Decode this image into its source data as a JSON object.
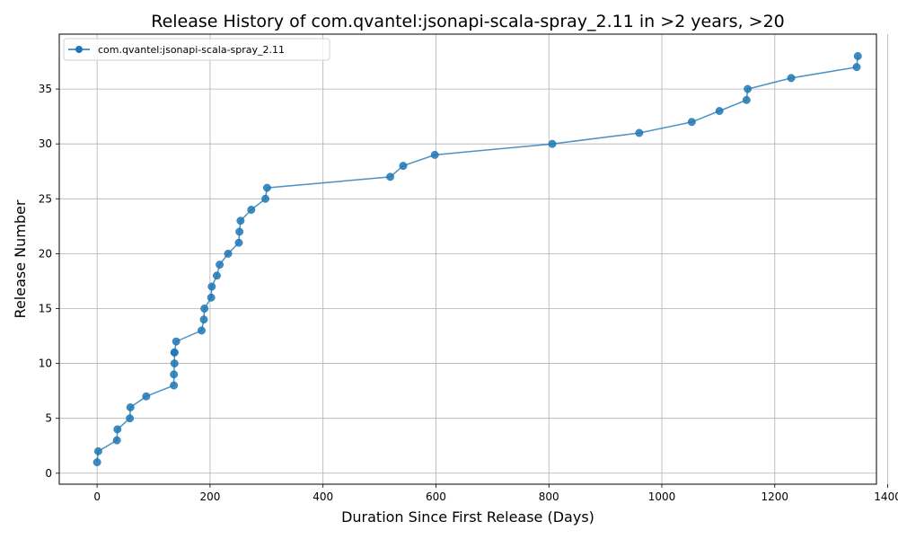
{
  "chart_data": {
    "type": "line",
    "title": "Release History of com.qvantel:jsonapi-scala-spray_2.11 in >2 years, >20",
    "xlabel": "Duration Since First Release (Days)",
    "ylabel": "Release Number",
    "xlim": [
      -67,
      1380
    ],
    "ylim": [
      -1,
      40
    ],
    "xticks": [
      0,
      200,
      400,
      600,
      800,
      1000,
      1200,
      1400
    ],
    "yticks": [
      0,
      5,
      10,
      15,
      20,
      25,
      30,
      35
    ],
    "grid": true,
    "legend_position": "top-left",
    "colors": {
      "series": "#1f77b4"
    },
    "series": [
      {
        "name": "com.qvantel:jsonapi-scala-spray_2.11",
        "x": [
          0,
          2,
          35,
          36,
          58,
          59,
          87,
          136,
          136,
          137,
          137,
          137,
          140,
          185,
          189,
          190,
          202,
          203,
          212,
          217,
          232,
          251,
          252,
          254,
          273,
          298,
          301,
          519,
          542,
          598,
          806,
          960,
          1053,
          1102,
          1150,
          1152,
          1229,
          1345,
          1347
        ],
        "y": [
          1,
          2,
          3,
          4,
          5,
          6,
          7,
          8,
          9,
          10,
          11,
          11,
          12,
          13,
          14,
          15,
          16,
          17,
          18,
          19,
          20,
          21,
          22,
          23,
          24,
          25,
          26,
          27,
          28,
          29,
          30,
          31,
          32,
          33,
          34,
          35,
          36,
          37,
          38
        ]
      }
    ]
  }
}
